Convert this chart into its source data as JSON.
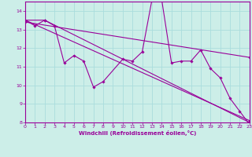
{
  "background_color": "#cceee8",
  "grid_color": "#aadddd",
  "line_color": "#990099",
  "xlabel": "Windchill (Refroidissement éolien,°C)",
  "xlim": [
    0,
    23
  ],
  "ylim": [
    8,
    14.5
  ],
  "yticks": [
    8,
    9,
    10,
    11,
    12,
    13,
    14
  ],
  "xticks": [
    0,
    1,
    2,
    3,
    4,
    5,
    6,
    7,
    8,
    9,
    10,
    11,
    12,
    13,
    14,
    15,
    16,
    17,
    18,
    19,
    20,
    21,
    22,
    23
  ],
  "series1_x": [
    0,
    1,
    2,
    3,
    4,
    5,
    6,
    7,
    8,
    10,
    11,
    12,
    13,
    14,
    15,
    16,
    17,
    18,
    19,
    20,
    21,
    22,
    23
  ],
  "series1_y": [
    13.5,
    13.2,
    13.5,
    13.2,
    11.2,
    11.6,
    11.3,
    9.9,
    10.2,
    11.4,
    11.3,
    11.8,
    14.6,
    14.6,
    11.2,
    11.3,
    11.3,
    11.9,
    10.9,
    10.4,
    9.3,
    8.6,
    7.9
  ],
  "series2_x": [
    0,
    23
  ],
  "series2_y": [
    13.5,
    8.1
  ],
  "series3_x": [
    0,
    2,
    23
  ],
  "series3_y": [
    13.5,
    13.5,
    8.0
  ],
  "series4_x": [
    0,
    23
  ],
  "series4_y": [
    13.4,
    11.5
  ]
}
